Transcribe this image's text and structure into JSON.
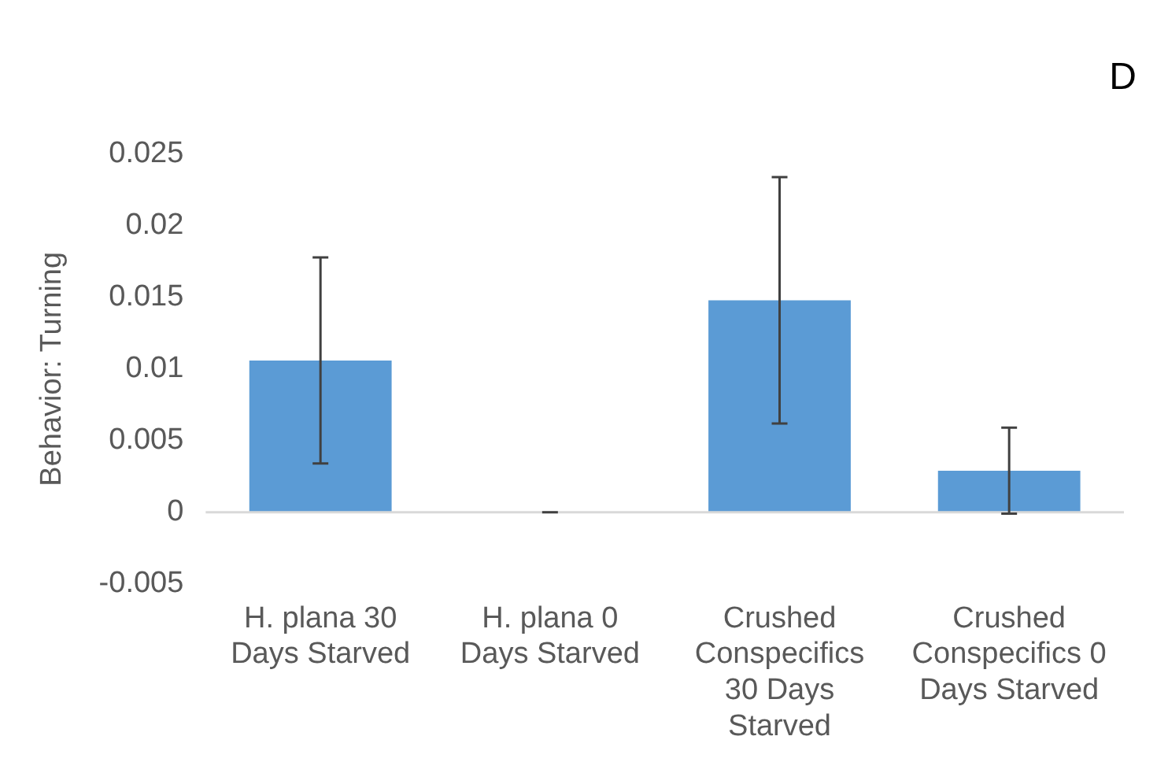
{
  "chart_data": {
    "type": "bar",
    "ylabel": "Behavior: Turning",
    "annotations": [
      "D"
    ],
    "categories": [
      "H. plana 30 Days Starved",
      "H. plana 0 Days Starved",
      "Crushed Conspecifics 30 Days Starved",
      "Crushed Conspecifics 0 Days Starved"
    ],
    "values": [
      0.0106,
      0,
      0.0148,
      0.0029
    ],
    "errors": [
      0.0072,
      0,
      0.0086,
      0.003
    ],
    "color": "#5b9bd5",
    "ylim": [
      -0.005,
      0.025
    ],
    "yticks": [
      -0.005,
      0,
      0.005,
      0.01,
      0.015,
      0.02,
      0.025
    ],
    "ref_lines": [
      {
        "axis": "y",
        "value": 0,
        "color": "#d9d9d9"
      }
    ],
    "grid": false,
    "legend": false
  }
}
